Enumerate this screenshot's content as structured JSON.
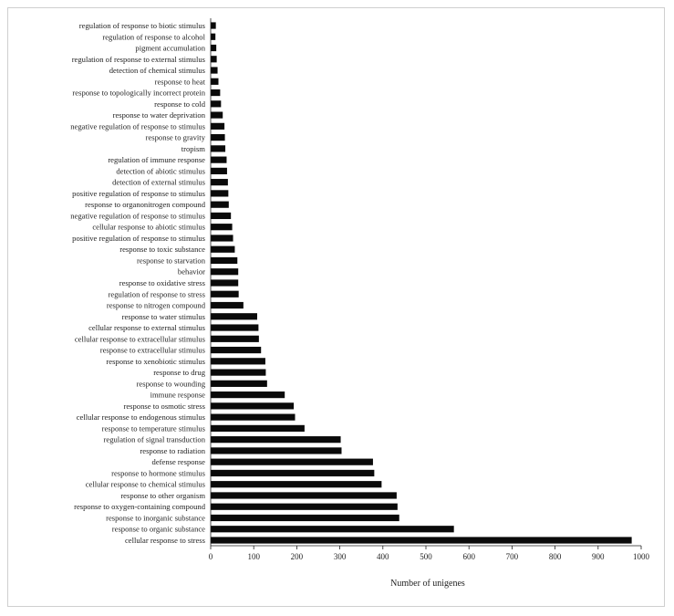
{
  "chart_data": {
    "type": "bar",
    "orientation": "horizontal",
    "title": "",
    "xlabel": "Number of unigenes",
    "ylabel": "",
    "xlim": [
      0,
      1000
    ],
    "xticks": [
      "0",
      "100",
      "200",
      "300",
      "400",
      "500",
      "600",
      "700",
      "800",
      "900",
      "1000"
    ],
    "grid": false,
    "bar_color": "#0a0a0a",
    "categories": [
      "regulation of response to biotic stimulus",
      "regulation of response to alcohol",
      "pigment accumulation",
      "regulation of response to external stimulus",
      "detection of chemical stimulus",
      "response to heat",
      "response to topologically incorrect protein",
      "response to cold",
      "response to water deprivation",
      "negative regulation of response to stimulus",
      "response to gravity",
      "tropism",
      "regulation of immune response",
      "detection of abiotic stimulus",
      "detection of external stimulus",
      "positive regulation of response to stimulus",
      "response to organonitrogen compound",
      "negative regulation of response to stimulus",
      "cellular response to abiotic stimulus",
      "positive regulation of response to stimulus",
      "response to toxic substance",
      "response to starvation",
      "behavior",
      "response to oxidative stress",
      "regulation of response to stress",
      "response to nitrogen compound",
      "response to water stimulus",
      "cellular response to external stimulus",
      "cellular response to extracellular stimulus",
      "response to extracellular stimulus",
      "response to xenobiotic stimulus",
      "response to drug",
      "response to wounding",
      "immune response",
      "response to osmotic stress",
      "cellular response to endogenous stimulus",
      "response to temperature stimulus",
      "regulation of signal transduction",
      "response to radiation",
      "defense response",
      "response to hormone stimulus",
      "cellular response to chemical stimulus",
      "response to other organism",
      "response to oxygen-containing compound",
      "response to inorganic substance",
      "response to organic substance",
      "cellular response to stress"
    ],
    "values": [
      12,
      11,
      13,
      14,
      16,
      18,
      22,
      24,
      28,
      32,
      33,
      34,
      37,
      38,
      40,
      41,
      42,
      47,
      50,
      52,
      56,
      62,
      64,
      64,
      65,
      76,
      108,
      111,
      112,
      117,
      127,
      128,
      131,
      172,
      193,
      196,
      218,
      302,
      304,
      377,
      380,
      397,
      432,
      434,
      438,
      565,
      978
    ]
  }
}
